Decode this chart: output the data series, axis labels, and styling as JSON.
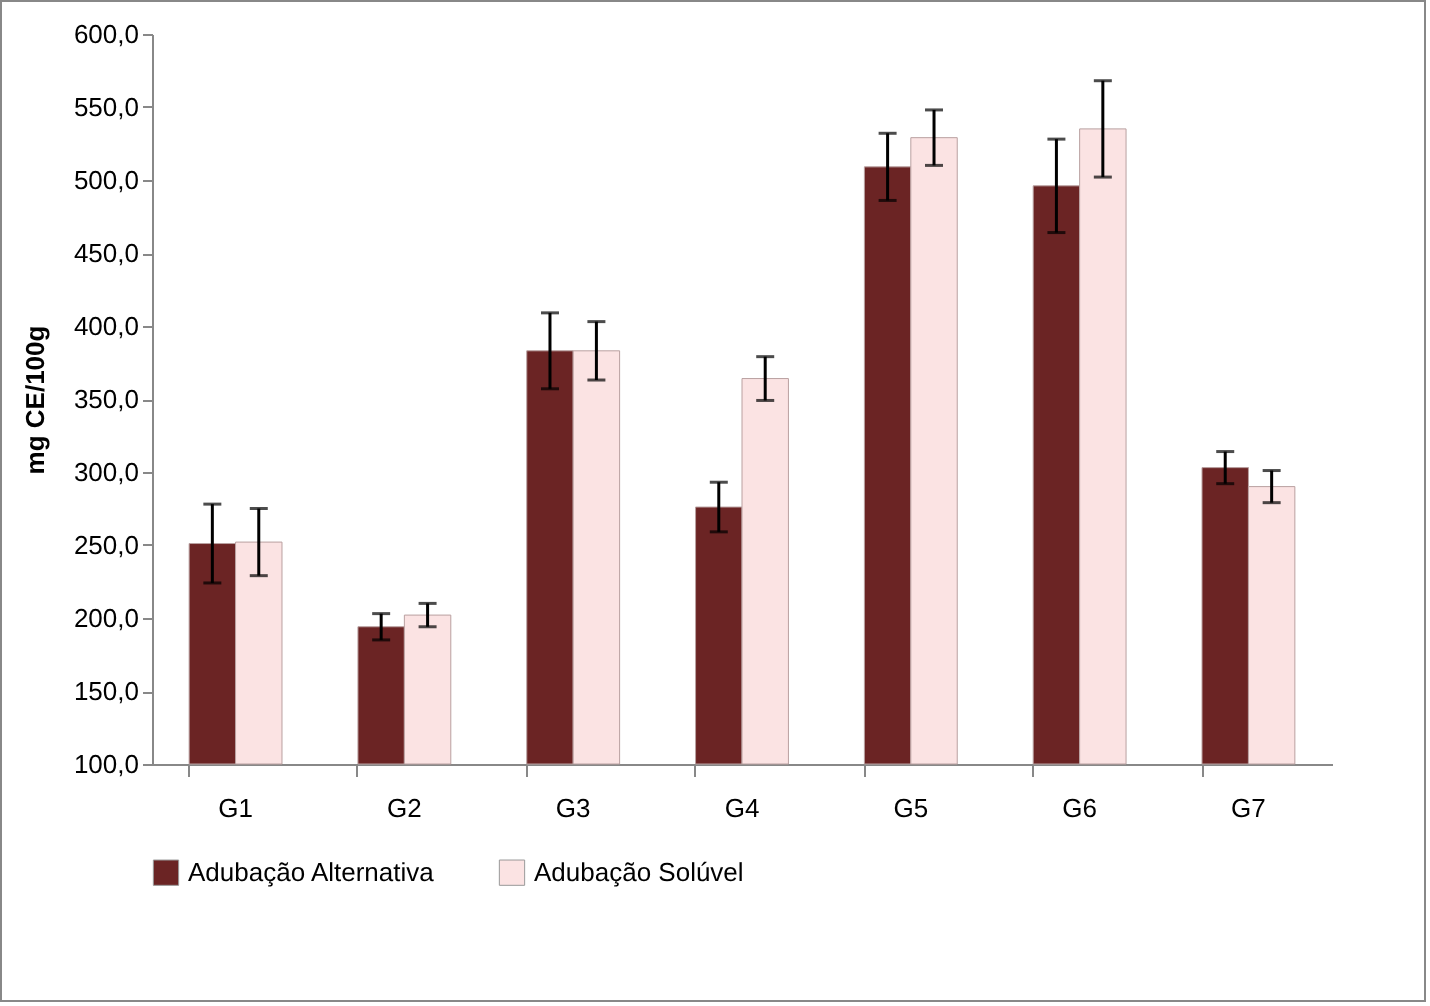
{
  "chart_data": {
    "type": "bar",
    "ylabel": "mg CE/100g",
    "categories": [
      "G1",
      "G2",
      "G3",
      "G4",
      "G5",
      "G6",
      "G7"
    ],
    "series": [
      {
        "name": "Adubação Alternativa",
        "color": "#6b2424",
        "values": [
          251,
          194,
          383,
          276,
          509,
          496,
          303
        ],
        "errors": [
          27,
          9,
          26,
          17,
          23,
          32,
          11
        ]
      },
      {
        "name": "Adubação Solúvel",
        "color": "#fbe3e3",
        "values": [
          252,
          202,
          383,
          364,
          529,
          535,
          290
        ],
        "errors": [
          23,
          8,
          20,
          15,
          19,
          33,
          11
        ]
      }
    ],
    "ylim": [
      100,
      600
    ],
    "yticks": [
      {
        "value": 100,
        "label": "100,0"
      },
      {
        "value": 150,
        "label": "150,0"
      },
      {
        "value": 200,
        "label": "200,0"
      },
      {
        "value": 250,
        "label": "250,0"
      },
      {
        "value": 300,
        "label": "300,0"
      },
      {
        "value": 350,
        "label": "350,0"
      },
      {
        "value": 400,
        "label": "400,0"
      },
      {
        "value": 450,
        "label": "450,0"
      },
      {
        "value": 500,
        "label": "500,0"
      },
      {
        "value": 550,
        "label": "550,0"
      },
      {
        "value": 600,
        "label": "600,0"
      }
    ],
    "legend": "bottom"
  }
}
